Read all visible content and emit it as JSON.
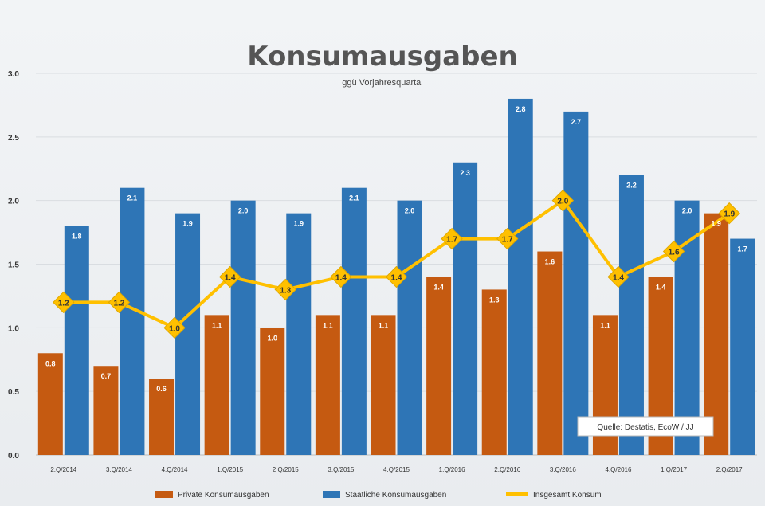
{
  "chart_data": {
    "type": "bar",
    "title": "Konsumausgaben",
    "subtitle": "ggü Vorjahresquartal",
    "categories": [
      "2.Q/2014",
      "3.Q/2014",
      "4.Q/2014",
      "1.Q/2015",
      "2.Q/2015",
      "3.Q/2015",
      "4.Q/2015",
      "1.Q/2016",
      "2.Q/2016",
      "3.Q/2016",
      "4.Q/2016",
      "1.Q/2017",
      "2.Q/2017"
    ],
    "series": [
      {
        "name": "Private Konsumausgaben",
        "type": "bar",
        "color": "#c55a11",
        "values": [
          0.8,
          0.7,
          0.6,
          1.1,
          1.0,
          1.1,
          1.1,
          1.4,
          1.3,
          1.6,
          1.1,
          1.4,
          1.9
        ]
      },
      {
        "name": "Staatliche Konsumausgaben",
        "type": "bar",
        "color": "#2e75b6",
        "values": [
          1.8,
          2.1,
          1.9,
          2.0,
          1.9,
          2.1,
          2.0,
          2.3,
          2.8,
          2.7,
          2.2,
          2.0,
          1.7
        ]
      },
      {
        "name": "Insgesamt Konsum",
        "type": "line",
        "color": "#ffc000",
        "values": [
          1.2,
          1.2,
          1.0,
          1.4,
          1.3,
          1.4,
          1.4,
          1.7,
          1.7,
          2.0,
          1.4,
          1.6,
          1.9
        ]
      }
    ],
    "ylim": [
      0,
      3.0
    ],
    "yticks": [
      "0.0",
      "0.5",
      "1.0",
      "1.5",
      "2.0",
      "2.5",
      "3.0"
    ],
    "grid": true,
    "legend_position": "bottom",
    "source_note": "Quelle: Destatis, EcoW / JJ"
  }
}
